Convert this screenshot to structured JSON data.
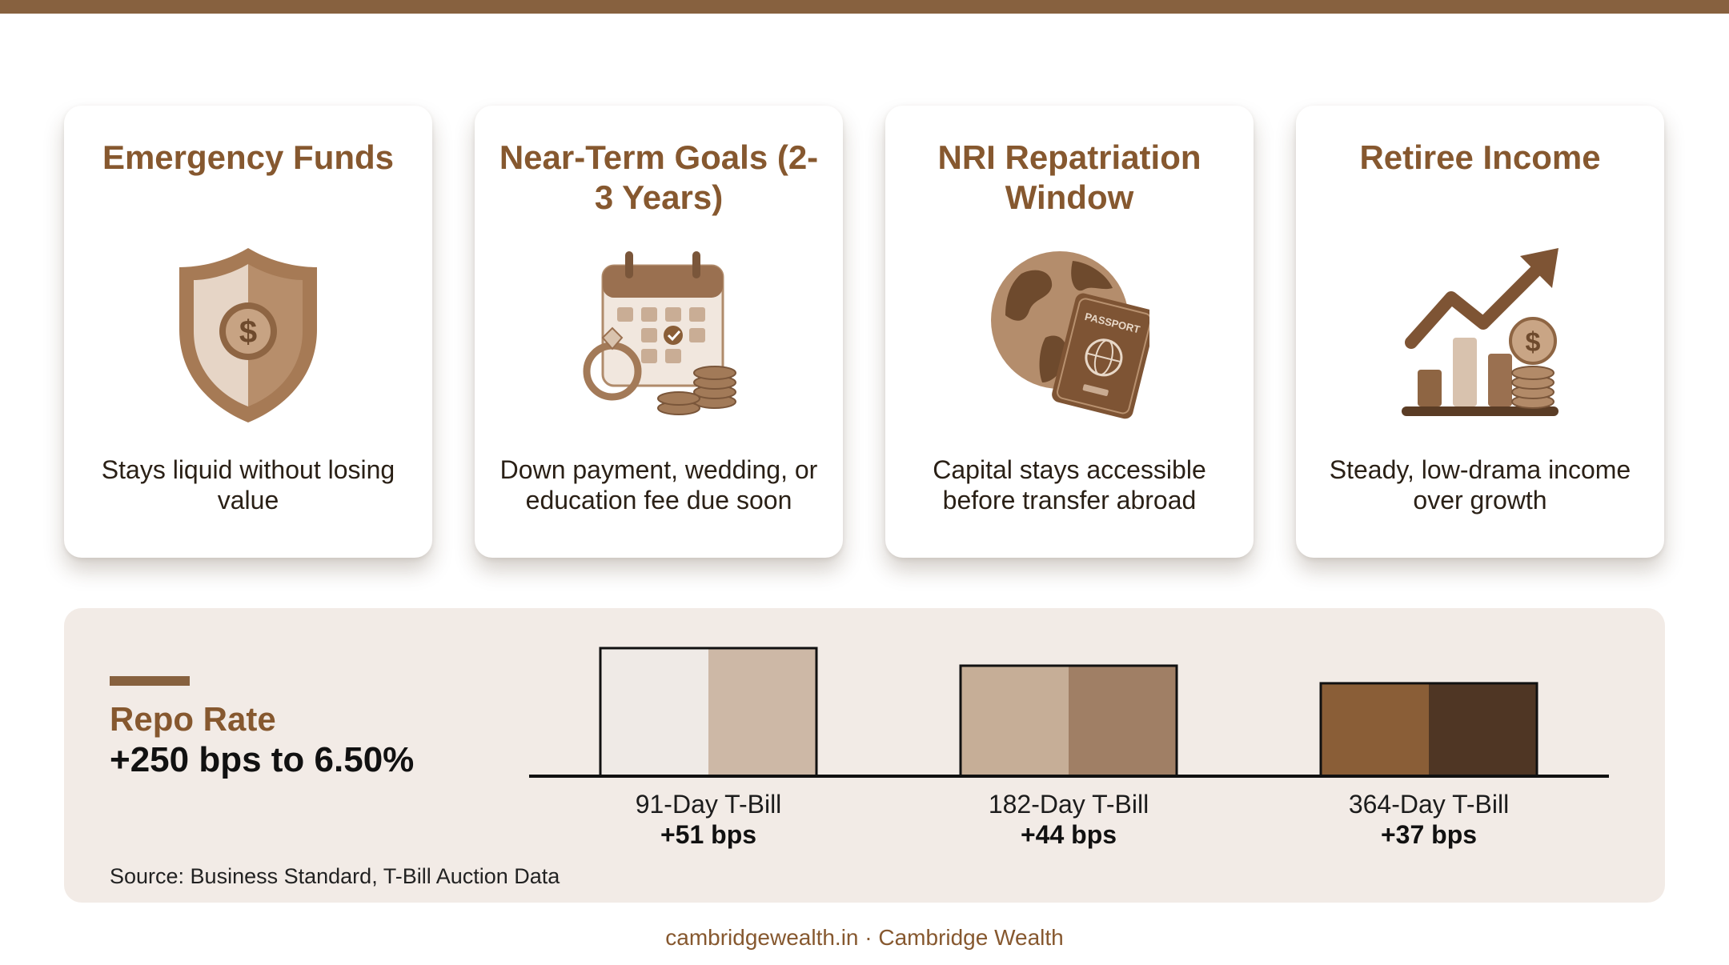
{
  "cards": [
    {
      "title": "Emergency Funds",
      "description": "Stays liquid without losing value",
      "icon": "shield-dollar-icon"
    },
    {
      "title": "Near-Term Goals (2-3 Years)",
      "description": "Down payment, wedding, or education fee due soon",
      "icon": "calendar-ring-coins-icon"
    },
    {
      "title": "NRI Repatriation Window",
      "description": "Capital stays accessible before transfer abroad",
      "icon": "globe-passport-icon"
    },
    {
      "title": "Retiree Income",
      "description": "Steady, low-drama income over growth",
      "icon": "growth-chart-coins-icon"
    }
  ],
  "panel": {
    "label": "Repo Rate",
    "value": "+250 bps to 6.50%",
    "source": "Source: Business Standard, T-Bill Auction Data"
  },
  "chart_data": {
    "type": "bar",
    "categories": [
      "91-Day T-Bill",
      "182-Day T-Bill",
      "364-Day T-Bill"
    ],
    "values": [
      51,
      44,
      37
    ],
    "value_labels": [
      "+51 bps",
      "+44 bps",
      "+37 bps"
    ],
    "unit": "bps",
    "ylim": [
      0,
      51
    ],
    "grid": false,
    "colors": [
      [
        "#efeae6",
        "#cdb8a6"
      ],
      [
        "#c6ae97",
        "#a07f65"
      ],
      [
        "#8a5e37",
        "#4f3624"
      ]
    ]
  },
  "footer": "cambridgewealth.in · Cambridge Wealth",
  "colors": {
    "brand": "#87613f",
    "title": "#86582f",
    "panel_bg": "#f2ebe6"
  }
}
